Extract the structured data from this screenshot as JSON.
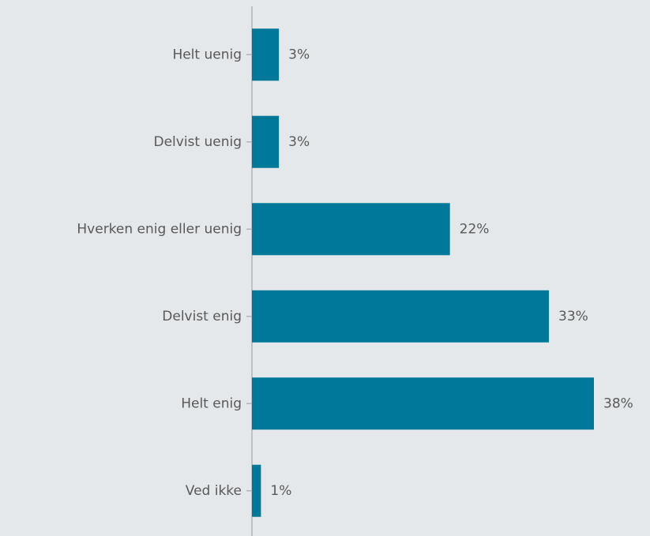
{
  "chart_data": {
    "type": "bar",
    "orientation": "horizontal",
    "categories": [
      "Helt uenig",
      "Delvist uenig",
      "Hverken enig eller uenig",
      "Delvist enig",
      "Helt enig",
      "Ved ikke"
    ],
    "values": [
      3,
      3,
      22,
      33,
      38,
      1
    ],
    "value_labels": [
      "3%",
      "3%",
      "22%",
      "33%",
      "38%",
      "1%"
    ],
    "color": "#00789a"
  }
}
